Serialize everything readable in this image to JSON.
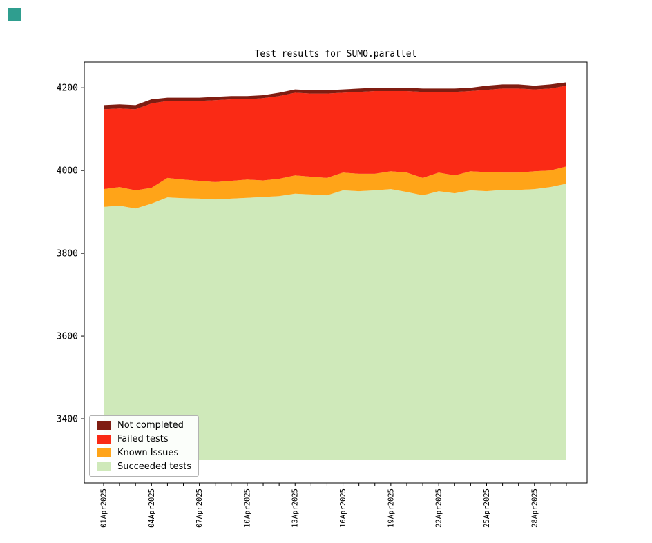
{
  "decorations": {
    "corner_color": "#2f9e8f",
    "background": "#ffffff"
  },
  "chart_data": {
    "type": "area",
    "title": "Test results for SUMO.parallel",
    "xlabel": "",
    "ylabel": "",
    "x_dates": [
      "01Apr2025",
      "02Apr2025",
      "03Apr2025",
      "04Apr2025",
      "05Apr2025",
      "06Apr2025",
      "07Apr2025",
      "08Apr2025",
      "09Apr2025",
      "10Apr2025",
      "11Apr2025",
      "12Apr2025",
      "13Apr2025",
      "14Apr2025",
      "15Apr2025",
      "16Apr2025",
      "17Apr2025",
      "18Apr2025",
      "19Apr2025",
      "20Apr2025",
      "21Apr2025",
      "22Apr2025",
      "23Apr2025",
      "24Apr2025",
      "25Apr2025",
      "26Apr2025",
      "27Apr2025",
      "28Apr2025",
      "29Apr2025",
      "30Apr2025"
    ],
    "x_tick_step": 3,
    "yticks": [
      3400,
      3600,
      3800,
      4000,
      4200
    ],
    "ylim": [
      3245,
      4262
    ],
    "baseline": 3300,
    "grid": false,
    "series": [
      {
        "name": "Succeeded tests",
        "color": "#cfe9ba",
        "values": [
          3912,
          3915,
          3908,
          3920,
          3935,
          3933,
          3932,
          3930,
          3932,
          3934,
          3936,
          3938,
          3944,
          3942,
          3940,
          3952,
          3950,
          3952,
          3955,
          3948,
          3940,
          3950,
          3945,
          3952,
          3950,
          3953,
          3953,
          3955,
          3960,
          3968
        ]
      },
      {
        "name": "Known Issues",
        "color": "#ffa418",
        "values": [
          43,
          45,
          44,
          38,
          47,
          45,
          43,
          42,
          43,
          44,
          40,
          42,
          44,
          43,
          42,
          43,
          42,
          40,
          43,
          47,
          42,
          45,
          43,
          46,
          46,
          42,
          42,
          43,
          40,
          42
        ]
      },
      {
        "name": "Failed tests",
        "color": "#fa2a15",
        "values": [
          193,
          190,
          196,
          204,
          186,
          190,
          193,
          198,
          197,
          194,
          199,
          200,
          200,
          201,
          204,
          193,
          198,
          200,
          194,
          197,
          208,
          195,
          202,
          194,
          199,
          203,
          203,
          198,
          198,
          195
        ]
      },
      {
        "name": "Not completed",
        "color": "#7f1d12",
        "values": [
          10,
          10,
          10,
          10,
          8,
          8,
          8,
          8,
          8,
          8,
          7,
          8,
          8,
          8,
          8,
          8,
          8,
          8,
          8,
          8,
          8,
          8,
          8,
          8,
          10,
          10,
          10,
          9,
          10,
          8
        ]
      }
    ],
    "legend": {
      "position": "lower left",
      "entries": [
        {
          "label": "Not completed",
          "color": "#7f1d12"
        },
        {
          "label": "Failed tests",
          "color": "#fa2a15"
        },
        {
          "label": "Known Issues",
          "color": "#ffa418"
        },
        {
          "label": "Succeeded tests",
          "color": "#cfe9ba"
        }
      ]
    }
  }
}
